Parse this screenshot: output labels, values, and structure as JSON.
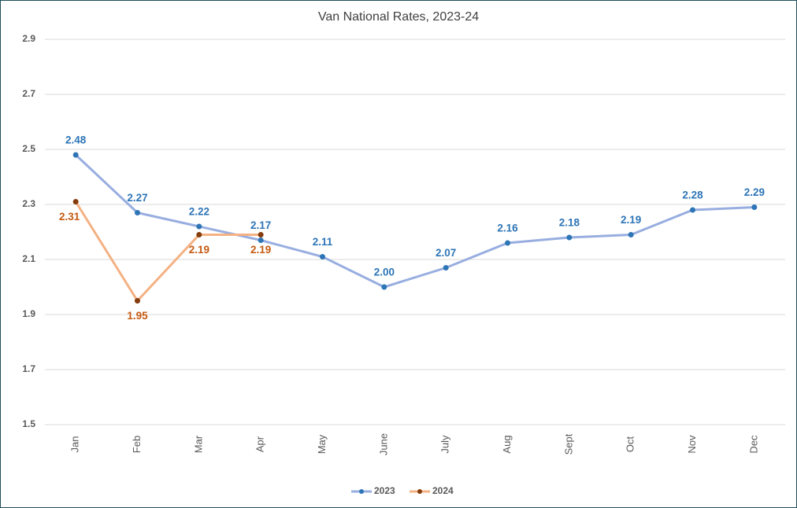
{
  "chart_data": {
    "type": "line",
    "title": "Van National Rates, 2023-24",
    "categories": [
      "Jan",
      "Feb",
      "Mar",
      "Apr",
      "May",
      "June",
      "July",
      "Aug",
      "Sept",
      "Oct",
      "Nov",
      "Dec"
    ],
    "series": [
      {
        "name": "2023",
        "color": "#98aee0",
        "marker_color": "#2e75b6",
        "label_color": "#2e75b6",
        "values": [
          2.48,
          2.27,
          2.22,
          2.17,
          2.11,
          2.0,
          2.07,
          2.16,
          2.18,
          2.19,
          2.28,
          2.29
        ],
        "value_labels": [
          "2.48",
          "2.27",
          "2.22",
          "2.17",
          "2.11",
          "2.00",
          "2.07",
          "2.16",
          "2.18",
          "2.19",
          "2.28",
          "2.29"
        ]
      },
      {
        "name": "2024",
        "color": "#f4b183",
        "marker_color": "#843c0c",
        "label_color": "#c55a11",
        "values": [
          2.31,
          1.95,
          2.19,
          2.19,
          null,
          null,
          null,
          null,
          null,
          null,
          null,
          null
        ],
        "value_labels": [
          "2.31",
          "1.95",
          "2.19",
          "2.19",
          null,
          null,
          null,
          null,
          null,
          null,
          null,
          null
        ]
      }
    ],
    "ylim": [
      1.5,
      2.9
    ],
    "yticks": [
      1.5,
      1.7,
      1.9,
      2.1,
      2.3,
      2.5,
      2.7,
      2.9
    ],
    "grid": true,
    "legend": "bottom"
  }
}
